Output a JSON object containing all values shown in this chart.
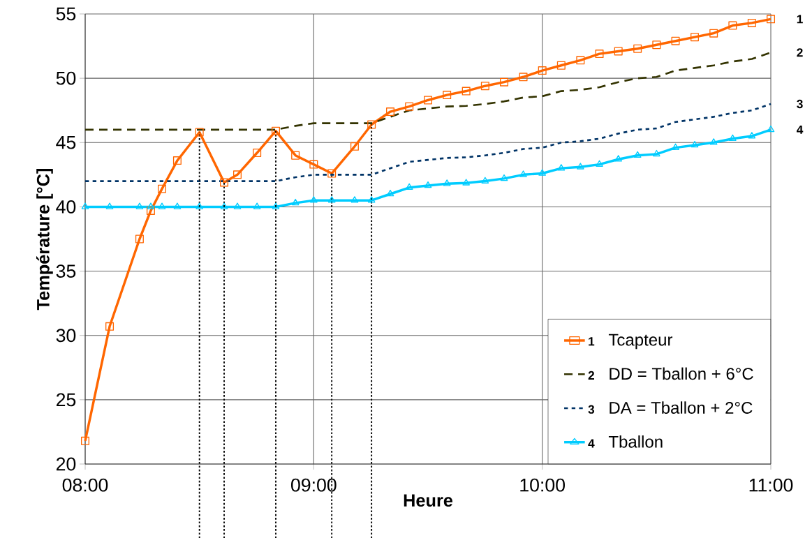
{
  "chart_data": {
    "type": "line",
    "xlabel": "Heure",
    "ylabel": "Température [°C]",
    "xlim": [
      8,
      11
    ],
    "xticks": [
      {
        "value": 8,
        "label": "08:00"
      },
      {
        "value": 9,
        "label": "09:00"
      },
      {
        "value": 10,
        "label": "10:00"
      },
      {
        "value": 11,
        "label": "11:00"
      }
    ],
    "ylim": [
      20,
      55
    ],
    "yticks": [
      20,
      25,
      30,
      35,
      40,
      45,
      50,
      55
    ],
    "grid": true,
    "legend": "bottom right",
    "x": [
      8.0,
      8.107,
      8.238,
      8.287,
      8.336,
      8.403,
      8.5,
      8.608,
      8.666,
      8.752,
      8.834,
      8.92,
      9.0,
      9.079,
      9.179,
      9.253,
      9.335,
      9.418,
      9.5,
      9.583,
      9.667,
      9.75,
      9.833,
      9.917,
      10.0,
      10.083,
      10.167,
      10.25,
      10.333,
      10.417,
      10.5,
      10.583,
      10.667,
      10.75,
      10.833,
      10.917,
      11.0
    ],
    "series": [
      {
        "name": "Tcapteur",
        "color": "#ff6600",
        "marker": "square",
        "line_style": "solid",
        "values": [
          21.8,
          30.7,
          37.5,
          39.7,
          41.4,
          43.6,
          45.8,
          41.9,
          42.5,
          44.2,
          45.9,
          44.0,
          43.3,
          42.6,
          44.7,
          46.4,
          47.4,
          47.8,
          48.3,
          48.7,
          49.0,
          49.4,
          49.7,
          50.1,
          50.6,
          51.0,
          51.4,
          51.9,
          52.1,
          52.3,
          52.6,
          52.9,
          53.2,
          53.5,
          54.1,
          54.3,
          54.6
        ]
      },
      {
        "name": "DD = Tballon + 6°C",
        "color": "#333300",
        "marker": "none",
        "line_style": "dashed",
        "values": [
          46,
          46,
          46,
          46,
          46,
          46,
          46,
          46,
          46,
          46,
          46,
          46.3,
          46.5,
          46.5,
          46.5,
          46.5,
          47.0,
          47.5,
          47.65,
          47.8,
          47.85,
          48.0,
          48.2,
          48.5,
          48.6,
          49.0,
          49.1,
          49.3,
          49.7,
          50.0,
          50.1,
          50.6,
          50.8,
          51.0,
          51.3,
          51.5,
          52.0
        ]
      },
      {
        "name": "DA = Tballon + 2°C",
        "color": "#003366",
        "marker": "none",
        "line_style": "dotted",
        "values": [
          42,
          42,
          42,
          42,
          42,
          42,
          42,
          42,
          42,
          42,
          42,
          42.3,
          42.5,
          42.5,
          42.5,
          42.5,
          43.0,
          43.5,
          43.65,
          43.8,
          43.85,
          44.0,
          44.2,
          44.5,
          44.6,
          45.0,
          45.1,
          45.3,
          45.7,
          46.0,
          46.1,
          46.6,
          46.8,
          47.0,
          47.3,
          47.5,
          48.0
        ]
      },
      {
        "name": "Tballon",
        "color": "#00ccff",
        "marker": "triangle",
        "line_style": "solid",
        "values": [
          40,
          40,
          40,
          40,
          40,
          40,
          40,
          40,
          40,
          40,
          40,
          40.3,
          40.5,
          40.5,
          40.5,
          40.5,
          41.0,
          41.5,
          41.65,
          41.8,
          41.85,
          42.0,
          42.2,
          42.5,
          42.6,
          43.0,
          43.1,
          43.3,
          43.7,
          44.0,
          44.1,
          44.6,
          44.8,
          45.0,
          45.3,
          45.5,
          46.0
        ]
      }
    ],
    "ref_lines": [
      {
        "axis": "x",
        "value": 8.5,
        "line_style": "dotted",
        "color": "#000000"
      },
      {
        "axis": "x",
        "value": 8.608,
        "line_style": "dotted",
        "color": "#000000"
      },
      {
        "axis": "x",
        "value": 8.834,
        "line_style": "dotted",
        "color": "#000000"
      },
      {
        "axis": "x",
        "value": 9.079,
        "line_style": "dotted",
        "color": "#000000"
      },
      {
        "axis": "x",
        "value": 9.253,
        "line_style": "dotted",
        "color": "#000000"
      }
    ],
    "annotations": [
      "1",
      "2",
      "3",
      "4"
    ]
  }
}
